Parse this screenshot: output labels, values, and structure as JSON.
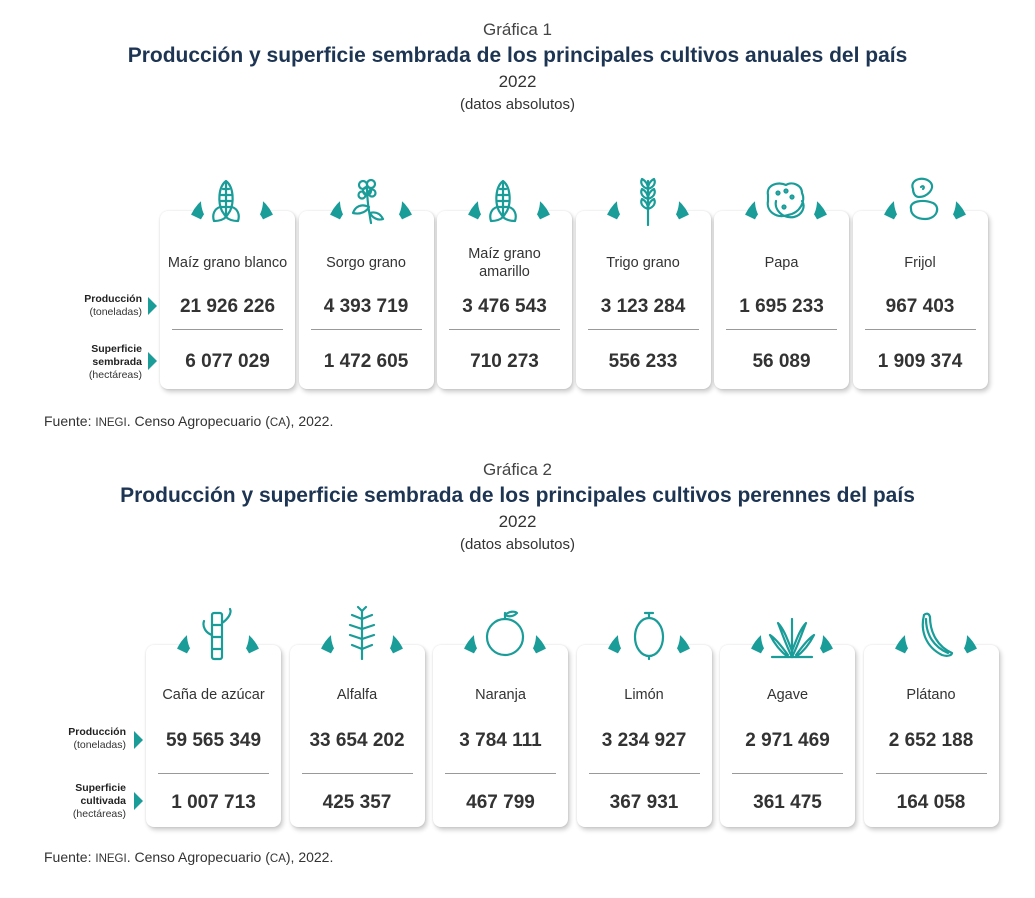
{
  "charts": [
    {
      "grafica": "Gráfica 1",
      "title": "Producción y superficie sembrada de los principales cultivos anuales del país",
      "year": "2022",
      "unit": "(datos absolutos)",
      "row1": {
        "label": "Producción",
        "sub": "(toneladas)"
      },
      "row2": {
        "label1": "Superficie",
        "label2": "sembrada",
        "sub": "(hectáreas)"
      },
      "source": {
        "prefix": "Fuente: ",
        "org": "INEGI",
        "mid": ". Censo Agropecuario (",
        "abbr": "CA",
        "suffix": "), 2022."
      }
    },
    {
      "grafica": "Gráfica 2",
      "title": "Producción y superficie sembrada de los principales cultivos perennes del país",
      "year": "2022",
      "unit": "(datos absolutos)",
      "row1": {
        "label": "Producción",
        "sub": "(toneladas)"
      },
      "row2": {
        "label1": "Superficie",
        "label2": "cultivada",
        "sub": "(hectáreas)"
      },
      "source": {
        "prefix": "Fuente: ",
        "org": "INEGI",
        "mid": ". Censo Agropecuario (",
        "abbr": "CA",
        "suffix": "), 2022."
      }
    }
  ],
  "chart_data": [
    {
      "type": "table",
      "title": "Producción y superficie sembrada de los principales cultivos anuales del país",
      "categories": [
        "Maíz grano blanco",
        "Sorgo grano",
        "Maíz grano amarillo",
        "Trigo grano",
        "Papa",
        "Frijol"
      ],
      "category_labels": [
        "21 926 226",
        "4 393 719",
        "3 476 543",
        "3 123 284",
        "1 695 233",
        "967 403"
      ],
      "series": [
        {
          "name": "Producción (toneladas)",
          "values": [
            21926226,
            4393719,
            3476543,
            3123284,
            1695233,
            967403
          ],
          "labels": [
            "21 926 226",
            "4 393 719",
            "3 476 543",
            "3 123 284",
            "1 695 233",
            "967 403"
          ]
        },
        {
          "name": "Superficie sembrada (hectáreas)",
          "values": [
            6077029,
            1472605,
            710273,
            556233,
            56089,
            1909374
          ],
          "labels": [
            "6 077 029",
            "1 472 605",
            "710 273",
            "556 233",
            "56 089",
            "1 909 374"
          ]
        }
      ],
      "icons": [
        "corn-icon",
        "sorghum-icon",
        "corn-icon",
        "wheat-icon",
        "potato-icon",
        "bean-icon"
      ]
    },
    {
      "type": "table",
      "title": "Producción y superficie sembrada de los principales cultivos perennes del país",
      "categories": [
        "Caña de azúcar",
        "Alfalfa",
        "Naranja",
        "Limón",
        "Agave",
        "Plátano"
      ],
      "series": [
        {
          "name": "Producción (toneladas)",
          "values": [
            59565349,
            33654202,
            3784111,
            3234927,
            2971469,
            2652188
          ],
          "labels": [
            "59 565 349",
            "33 654 202",
            "3 784 111",
            "3 234 927",
            "2 971 469",
            "2 652 188"
          ]
        },
        {
          "name": "Superficie cultivada (hectáreas)",
          "values": [
            1007713,
            425357,
            467799,
            367931,
            361475,
            164058
          ],
          "labels": [
            "1 007 713",
            "425 357",
            "467 799",
            "367 931",
            "361 475",
            "164 058"
          ]
        }
      ],
      "icons": [
        "sugarcane-icon",
        "alfalfa-icon",
        "orange-icon",
        "lemon-icon",
        "agave-icon",
        "banana-icon"
      ]
    }
  ],
  "colors": {
    "teal": "#1a9c99",
    "title": "#1d3553"
  }
}
